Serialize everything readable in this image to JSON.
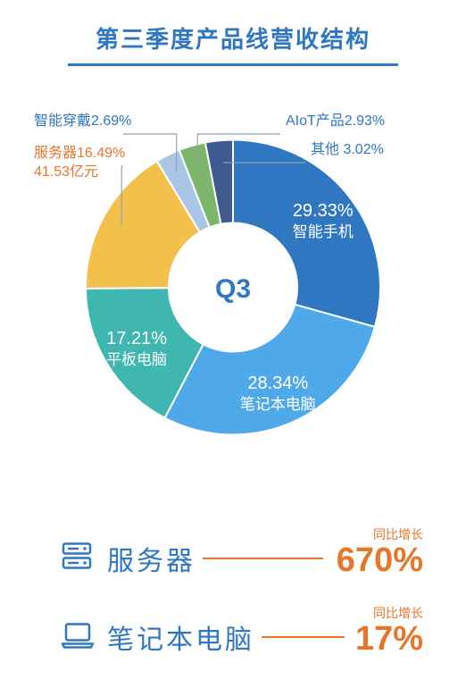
{
  "title": {
    "text": "第三季度产品线营收结构",
    "color": "#2f77c1",
    "underline_color": "#2f77c1"
  },
  "chart": {
    "type": "donut",
    "center_label": "Q3",
    "center_label_color": "#2f77c1",
    "outer_radius": 165,
    "inner_radius": 72,
    "background": "#ffffff",
    "slices": [
      {
        "name": "智能手机",
        "value": 29.33,
        "color": "#2f77c1",
        "label_inside": true
      },
      {
        "name": "笔记本电脑",
        "value": 28.34,
        "color": "#4fa8e8",
        "label_inside": true
      },
      {
        "name": "平板电脑",
        "value": 17.21,
        "color": "#3fb6b0",
        "label_inside": true
      },
      {
        "name": "服务器",
        "value": 16.49,
        "color": "#f3c14b",
        "label_inside": false,
        "ext_line1": "服务器16.49%",
        "ext_line1_color": "#e7762b",
        "ext_line2": "41.53亿元",
        "ext_line2_color": "#e7762b"
      },
      {
        "name": "智能穿戴",
        "value": 2.69,
        "color": "#a9c6e6",
        "label_inside": false,
        "ext_line1": "智能穿戴2.69%",
        "ext_line1_color": "#2f77c1"
      },
      {
        "name": "AIoT产品",
        "value": 2.93,
        "color": "#7bb66a",
        "label_inside": false,
        "ext_line1": "AIoT产品2.93%",
        "ext_line1_color": "#2f77c1"
      },
      {
        "name": "其他",
        "value": 3.02,
        "color": "#3e5a8f",
        "label_inside": false,
        "ext_line1": "其他 3.02%",
        "ext_line1_color": "#2f77c1"
      }
    ],
    "callout_color": "#8fa3b8",
    "callout_dot_radius": 3
  },
  "growth": {
    "icon_color": "#2f77c1",
    "name_color": "#2f77c1",
    "line_color": "#e7762b",
    "small_label": "同比增长",
    "small_color": "#e7762b",
    "value_color": "#e7762b",
    "items": [
      {
        "icon": "server",
        "name": "服务器",
        "value": "670%"
      },
      {
        "icon": "laptop",
        "name": "笔记本电脑",
        "value": "17%"
      }
    ]
  }
}
